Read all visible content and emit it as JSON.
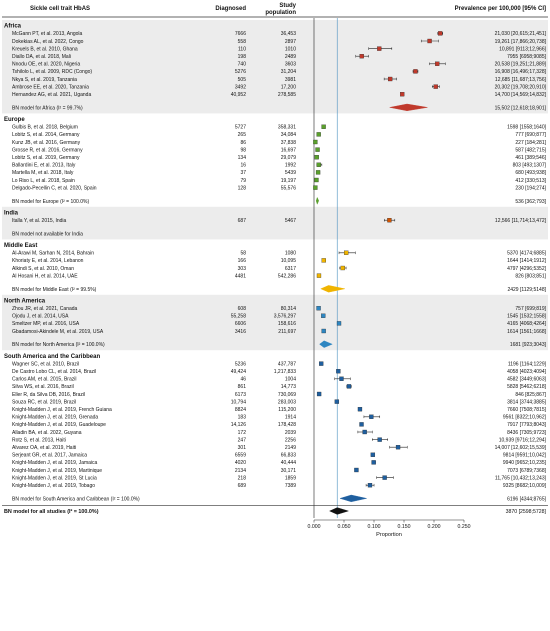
{
  "chart_data": {
    "type": "forest",
    "headers": {
      "study": "Sickle cell trait HbAS",
      "diagnosed": "Diagnosed",
      "population": "Study population",
      "prevalence": "Prevalence per 100,000 [95% CI]"
    },
    "x_ticks": [
      "0.000",
      "0.050",
      "0.100",
      "0.150",
      "0.200",
      "0.250"
    ],
    "xlim": [
      0,
      0.25
    ],
    "xlabel": "Proportion",
    "overall_line_x": 0.0387,
    "groups": [
      {
        "name": "Africa",
        "color": "#c0392b",
        "studies": [
          {
            "label": "McGann PT, et al. 2013, Angola",
            "diagnosed": "7666",
            "population": "36,453",
            "ci_text": "21,030 [20,615;21,451]",
            "est": 0.2103,
            "lo": 0.2062,
            "hi": 0.2145
          },
          {
            "label": "Dokekias AL, et al. 2022, Congo",
            "diagnosed": "558",
            "population": "2897",
            "ci_text": "19,261 [17,866;20,738]",
            "est": 0.1926,
            "lo": 0.1787,
            "hi": 0.2074
          },
          {
            "label": "Kreuels B, et al. 2010, Ghana",
            "diagnosed": "110",
            "population": "1010",
            "ci_text": "10,891 [9113;12,966]",
            "est": 0.1089,
            "lo": 0.0911,
            "hi": 0.1297
          },
          {
            "label": "Diallo DA, et al. 2018, Mali",
            "diagnosed": "198",
            "population": "2489",
            "ci_text": "7955 [6958;9085]",
            "est": 0.0796,
            "lo": 0.0696,
            "hi": 0.0909
          },
          {
            "label": "Nnodu OE, et al. 2020, Nigeria",
            "diagnosed": "740",
            "population": "3603",
            "ci_text": "20,538 [19,251;21,889]",
            "est": 0.2054,
            "lo": 0.1925,
            "hi": 0.2189
          },
          {
            "label": "Tshilolo L, et al. 2009, RDC (Congo)",
            "diagnosed": "5276",
            "population": "31,204",
            "ci_text": "16,908 [16,496;17,328]",
            "est": 0.1691,
            "lo": 0.165,
            "hi": 0.1733
          },
          {
            "label": "Nkya S, et al. 2019, Tanzania",
            "diagnosed": "505",
            "population": "3981",
            "ci_text": "12,685 [11,687;13,756]",
            "est": 0.1269,
            "lo": 0.1169,
            "hi": 0.1376
          },
          {
            "label": "Ambrose EE, et al. 2020, Tanzania",
            "diagnosed": "3492",
            "population": "17,200",
            "ci_text": "20,302 [19,708;20,910]",
            "est": 0.203,
            "lo": 0.1971,
            "hi": 0.2091
          },
          {
            "label": "Hernandez AG, et al. 2021, Uganda",
            "diagnosed": "40,952",
            "population": "278,585",
            "ci_text": "14,700 [14,569;14,832]",
            "est": 0.147,
            "lo": 0.1457,
            "hi": 0.1483
          }
        ],
        "model": {
          "label": "BN model for Africa (I² = 99.7%)",
          "ci_text": "15,502 [12,618;18,901]",
          "est": 0.155,
          "lo": 0.1262,
          "hi": 0.189
        }
      },
      {
        "name": "Europe",
        "color": "#5aa02c",
        "studies": [
          {
            "label": "Gulbis B, et al. 2018, Belgium",
            "diagnosed": "5727",
            "population": "358,331",
            "ci_text": "1598 [1558;1640]",
            "est": 0.016,
            "lo": 0.0156,
            "hi": 0.0164
          },
          {
            "label": "Lobitz S, et al. 2014, Germany",
            "diagnosed": "265",
            "population": "34,084",
            "ci_text": "777 [690;877]",
            "est": 0.0078,
            "lo": 0.0069,
            "hi": 0.0088
          },
          {
            "label": "Kunz JB, et al. 2016, Germany",
            "diagnosed": "86",
            "population": "37,838",
            "ci_text": "227 [184;281]",
            "est": 0.0023,
            "lo": 0.0018,
            "hi": 0.0028
          },
          {
            "label": "Grosse R, et al. 2016, Germany",
            "diagnosed": "98",
            "population": "16,697",
            "ci_text": "587 [482;715]",
            "est": 0.0059,
            "lo": 0.0048,
            "hi": 0.0072
          },
          {
            "label": "Lobitz S, et al. 2019, Germany",
            "diagnosed": "134",
            "population": "29,079",
            "ci_text": "461 [389;546]",
            "est": 0.0046,
            "lo": 0.0039,
            "hi": 0.0055
          },
          {
            "label": "Ballardini E, et al. 2013, Italy",
            "diagnosed": "16",
            "population": "1992",
            "ci_text": "803 [493;1307]",
            "est": 0.008,
            "lo": 0.0049,
            "hi": 0.0131
          },
          {
            "label": "Martella M, et al. 2018, Italy",
            "diagnosed": "37",
            "population": "5439",
            "ci_text": "680 [493;938]",
            "est": 0.0068,
            "lo": 0.0049,
            "hi": 0.0094
          },
          {
            "label": "Lo Riso L, et al. 2018, Spain",
            "diagnosed": "79",
            "population": "19,197",
            "ci_text": "412 [330;513]",
            "est": 0.0041,
            "lo": 0.0033,
            "hi": 0.0051
          },
          {
            "label": "Delgado-Pecellin C, et al. 2020, Spain",
            "diagnosed": "128",
            "population": "55,576",
            "ci_text": "230 [194;274]",
            "est": 0.0023,
            "lo": 0.0019,
            "hi": 0.0027
          }
        ],
        "model": {
          "label": "BN model for Europe (I² = 100.0%)",
          "ci_text": "536 [362;793]",
          "est": 0.0054,
          "lo": 0.0036,
          "hi": 0.0079
        }
      },
      {
        "name": "India",
        "color": "#d35400",
        "studies": [
          {
            "label": "Italla Y, et al. 2015, India",
            "diagnosed": "687",
            "population": "5467",
            "ci_text": "12,566 [11,714;13,472]",
            "est": 0.1257,
            "lo": 0.1171,
            "hi": 0.1347
          }
        ],
        "model": {
          "label": "BN model not available for India",
          "ci_text": "",
          "est": null,
          "lo": null,
          "hi": null
        }
      },
      {
        "name": "Middle East",
        "color": "#f0b400",
        "studies": [
          {
            "label": "Al-Arawi M, Sarhan N, 2014, Bahrain",
            "diagnosed": "58",
            "population": "1080",
            "ci_text": "5370 [4174;6885]",
            "est": 0.0537,
            "lo": 0.0417,
            "hi": 0.0689
          },
          {
            "label": "Khoriaty E, et al. 2014, Lebanon",
            "diagnosed": "166",
            "population": "10,095",
            "ci_text": "1644 [1414;1912]",
            "est": 0.0164,
            "lo": 0.0141,
            "hi": 0.0191
          },
          {
            "label": "Alkindi S, et al. 2010, Oman",
            "diagnosed": "303",
            "population": "6317",
            "ci_text": "4797 [4296;5352]",
            "est": 0.048,
            "lo": 0.043,
            "hi": 0.0535
          },
          {
            "label": "Al Hosani H, et al. 2014, UAE",
            "diagnosed": "4481",
            "population": "542,286",
            "ci_text": "826 [803;851]",
            "est": 0.0083,
            "lo": 0.008,
            "hi": 0.0085
          }
        ],
        "model": {
          "label": "BN model for Middle East (I² = 99.5%)",
          "ci_text": "2429 [1129;5148]",
          "est": 0.0243,
          "lo": 0.0113,
          "hi": 0.0515
        }
      },
      {
        "name": "North America",
        "color": "#2e86c1",
        "studies": [
          {
            "label": "Zhou JR, et al. 2021, Canada",
            "diagnosed": "608",
            "population": "80,314",
            "ci_text": "757 [699;819]",
            "est": 0.0076,
            "lo": 0.007,
            "hi": 0.0082
          },
          {
            "label": "Ojodu J, et al. 2014, USA",
            "diagnosed": "55,258",
            "population": "3,576,297",
            "ci_text": "1545 [1532;1558]",
            "est": 0.0155,
            "lo": 0.0153,
            "hi": 0.0156
          },
          {
            "label": "Smeltzer MP, et al. 2016, USA",
            "diagnosed": "6606",
            "population": "158,616",
            "ci_text": "4165 [4068;4264]",
            "est": 0.0417,
            "lo": 0.0407,
            "hi": 0.0426
          },
          {
            "label": "Gbadamosi-Akindele M, et al. 2019, USA",
            "diagnosed": "3416",
            "population": "211,697",
            "ci_text": "1614 [1561;1668]",
            "est": 0.0161,
            "lo": 0.0156,
            "hi": 0.0167
          }
        ],
        "model": {
          "label": "BN model for North America (I² = 100.0%)",
          "ci_text": "1681 [923;3043]",
          "est": 0.0168,
          "lo": 0.0092,
          "hi": 0.0304
        }
      },
      {
        "name": "South America and the Caribbean",
        "color": "#1f5f9f",
        "studies": [
          {
            "label": "Wagner SC, et al. 2010, Brazil",
            "diagnosed": "5236",
            "population": "437,787",
            "ci_text": "1196 [1164;1229]",
            "est": 0.012,
            "lo": 0.0116,
            "hi": 0.0123
          },
          {
            "label": "De Castro Lobo CL, et al. 2014, Brazil",
            "diagnosed": "49,424",
            "population": "1,217,833",
            "ci_text": "4058 [4023;4094]",
            "est": 0.0406,
            "lo": 0.0402,
            "hi": 0.0409
          },
          {
            "label": "Carlos AM, et al. 2015, Brazil",
            "diagnosed": "46",
            "population": "1004",
            "ci_text": "4582 [3449;6063]",
            "est": 0.0458,
            "lo": 0.0345,
            "hi": 0.0606
          },
          {
            "label": "Silva WS, et al. 2016, Brazil",
            "diagnosed": "861",
            "population": "14,773",
            "ci_text": "5828 [5462;6218]",
            "est": 0.0583,
            "lo": 0.0546,
            "hi": 0.0622
          },
          {
            "label": "Eller R, da Silva DB, 2016, Brazil",
            "diagnosed": "6173",
            "population": "730,069",
            "ci_text": "846 [825;867]",
            "est": 0.0085,
            "lo": 0.0083,
            "hi": 0.0087
          },
          {
            "label": "Souza RC, et al. 2019, Brazil",
            "diagnosed": "10,794",
            "population": "283,003",
            "ci_text": "3814 [3744;3885]",
            "est": 0.0381,
            "lo": 0.0374,
            "hi": 0.0389
          },
          {
            "label": "Knight-Madden J, et al. 2019, French Guiana",
            "diagnosed": "8824",
            "population": "115,200",
            "ci_text": "7660 [7508;7815]",
            "est": 0.0766,
            "lo": 0.0751,
            "hi": 0.0782
          },
          {
            "label": "Knight-Madden J, et al. 2019, Grenada",
            "diagnosed": "183",
            "population": "1914",
            "ci_text": "9561 [8322;10,962]",
            "est": 0.0956,
            "lo": 0.0832,
            "hi": 0.1096
          },
          {
            "label": "Knight-Madden J, et al. 2019, Guadeloupe",
            "diagnosed": "14,126",
            "population": "178,428",
            "ci_text": "7917 [7793;8043]",
            "est": 0.0792,
            "lo": 0.0779,
            "hi": 0.0804
          },
          {
            "label": "Alladin BA, et al. 2022, Guyana",
            "diagnosed": "172",
            "population": "2039",
            "ci_text": "8436 [7305;9723]",
            "est": 0.0844,
            "lo": 0.0731,
            "hi": 0.0972
          },
          {
            "label": "Rotz S, et al. 2013, Haiti",
            "diagnosed": "247",
            "population": "2256",
            "ci_text": "10,939 [9716;12,294]",
            "est": 0.1094,
            "lo": 0.0972,
            "hi": 0.1229
          },
          {
            "label": "Alvarez OA, et al. 2019, Haiti",
            "diagnosed": "301",
            "population": "2149",
            "ci_text": "14,007 [12,602;15,539]",
            "est": 0.1401,
            "lo": 0.126,
            "hi": 0.1554
          },
          {
            "label": "Serjeant GR, et al. 2017, Jamaica",
            "diagnosed": "6559",
            "population": "66,833",
            "ci_text": "9814 [9591;10,042]",
            "est": 0.0981,
            "lo": 0.0959,
            "hi": 0.1004
          },
          {
            "label": "Knight-Madden J, et al. 2019, Jamaica",
            "diagnosed": "4020",
            "population": "40,444",
            "ci_text": "9940 [9652;10,235]",
            "est": 0.0994,
            "lo": 0.0965,
            "hi": 0.1024
          },
          {
            "label": "Knight-Madden J, et al. 2019, Martinique",
            "diagnosed": "2134",
            "population": "30,171",
            "ci_text": "7073 [6789;7368]",
            "est": 0.0707,
            "lo": 0.0679,
            "hi": 0.0737
          },
          {
            "label": "Knight-Madden J, et al. 2019, St Lucia",
            "diagnosed": "218",
            "population": "1859",
            "ci_text": "11,765 [10,432;13,243]",
            "est": 0.1177,
            "lo": 0.1043,
            "hi": 0.1324
          },
          {
            "label": "Knight-Madden J, et al. 2019, Tobago",
            "diagnosed": "689",
            "population": "7389",
            "ci_text": "9325 [8682;10,009]",
            "est": 0.0933,
            "lo": 0.0868,
            "hi": 0.1001
          }
        ],
        "model": {
          "label": "BN model for South America and Caribbean (I² = 100.0%)",
          "ci_text": "6196 [4344;8765]",
          "est": 0.062,
          "lo": 0.0434,
          "hi": 0.0877
        }
      }
    ],
    "overall": {
      "label": "BN model for all studies (I² = 100.0%)",
      "ci_text": "3870 [2598;5728]",
      "est": 0.0387,
      "lo": 0.026,
      "hi": 0.0573
    }
  }
}
